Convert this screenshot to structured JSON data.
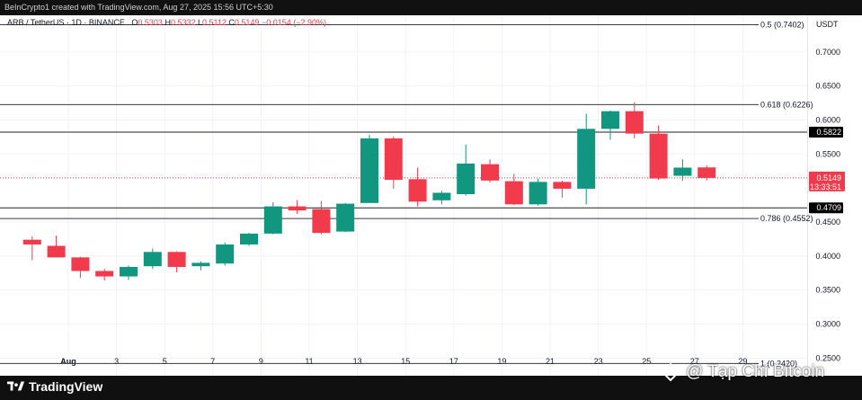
{
  "header": {
    "credit": "BeInCrypto1 created with TradingView.com, Aug 27, 2025 15:56 UTC+5:30"
  },
  "legend": {
    "symbol": "ARB / TetherUS · 1D · BINANCE",
    "o_label": "O",
    "o_value": "0.5303",
    "h_label": "H",
    "h_value": "0.5332",
    "l_label": "L",
    "l_value": "0.5112",
    "c_label": "C",
    "c_value": "0.5149",
    "change": "−0.0154 (−2.90%)"
  },
  "axis": {
    "currency": "USDT"
  },
  "colors": {
    "up": "#11967f",
    "down": "#f23a4d",
    "fib_line": "#3a3a3a",
    "grid": "#f0f3fa"
  },
  "watermark": {
    "text": "@ Tạp Chí Bitcoin"
  },
  "footer": {
    "brand": "TradingView"
  },
  "chart_data": {
    "type": "candlestick",
    "ylim": [
      0.224,
      0.754
    ],
    "y_ticks": [
      "0.7000",
      "0.6500",
      "0.6000",
      "0.5500",
      "0.4500",
      "0.4000",
      "0.3500",
      "0.3000",
      "0.2500"
    ],
    "x_ticks": [
      {
        "label": "Aug",
        "day": 1
      },
      {
        "label": "3",
        "day": 3
      },
      {
        "label": "5",
        "day": 5
      },
      {
        "label": "7",
        "day": 7
      },
      {
        "label": "9",
        "day": 9
      },
      {
        "label": "11",
        "day": 11
      },
      {
        "label": "13",
        "day": 13
      },
      {
        "label": "15",
        "day": 15
      },
      {
        "label": "17",
        "day": 17
      },
      {
        "label": "19",
        "day": 19
      },
      {
        "label": "21",
        "day": 21
      },
      {
        "label": "23",
        "day": 23
      },
      {
        "label": "25",
        "day": 25
      },
      {
        "label": "27",
        "day": 27
      },
      {
        "label": "29",
        "day": 29
      }
    ],
    "candles": [
      {
        "day": -0.5,
        "o": 0.424,
        "h": 0.429,
        "l": 0.394,
        "c": 0.417
      },
      {
        "day": 0.5,
        "o": 0.415,
        "h": 0.43,
        "l": 0.399,
        "c": 0.398
      },
      {
        "day": 1.5,
        "o": 0.398,
        "h": 0.399,
        "l": 0.368,
        "c": 0.378
      },
      {
        "day": 2.5,
        "o": 0.378,
        "h": 0.381,
        "l": 0.364,
        "c": 0.37
      },
      {
        "day": 3.5,
        "o": 0.37,
        "h": 0.386,
        "l": 0.365,
        "c": 0.384
      },
      {
        "day": 4.5,
        "o": 0.385,
        "h": 0.411,
        "l": 0.381,
        "c": 0.406
      },
      {
        "day": 5.5,
        "o": 0.406,
        "h": 0.407,
        "l": 0.376,
        "c": 0.384
      },
      {
        "day": 6.5,
        "o": 0.385,
        "h": 0.392,
        "l": 0.379,
        "c": 0.39
      },
      {
        "day": 7.5,
        "o": 0.389,
        "h": 0.42,
        "l": 0.386,
        "c": 0.417
      },
      {
        "day": 8.5,
        "o": 0.417,
        "h": 0.434,
        "l": 0.415,
        "c": 0.433
      },
      {
        "day": 9.5,
        "o": 0.433,
        "h": 0.479,
        "l": 0.432,
        "c": 0.473
      },
      {
        "day": 10.5,
        "o": 0.473,
        "h": 0.482,
        "l": 0.462,
        "c": 0.467
      },
      {
        "day": 11.5,
        "o": 0.469,
        "h": 0.481,
        "l": 0.432,
        "c": 0.434
      },
      {
        "day": 12.5,
        "o": 0.436,
        "h": 0.478,
        "l": 0.435,
        "c": 0.477
      },
      {
        "day": 13.5,
        "o": 0.478,
        "h": 0.578,
        "l": 0.478,
        "c": 0.573
      },
      {
        "day": 14.5,
        "o": 0.573,
        "h": 0.576,
        "l": 0.499,
        "c": 0.512
      },
      {
        "day": 15.5,
        "o": 0.513,
        "h": 0.53,
        "l": 0.473,
        "c": 0.48
      },
      {
        "day": 16.5,
        "o": 0.482,
        "h": 0.496,
        "l": 0.476,
        "c": 0.493
      },
      {
        "day": 17.5,
        "o": 0.491,
        "h": 0.564,
        "l": 0.489,
        "c": 0.536
      },
      {
        "day": 18.5,
        "o": 0.535,
        "h": 0.542,
        "l": 0.508,
        "c": 0.511
      },
      {
        "day": 19.5,
        "o": 0.51,
        "h": 0.521,
        "l": 0.475,
        "c": 0.476
      },
      {
        "day": 20.5,
        "o": 0.476,
        "h": 0.514,
        "l": 0.474,
        "c": 0.509
      },
      {
        "day": 21.5,
        "o": 0.509,
        "h": 0.511,
        "l": 0.486,
        "c": 0.499
      },
      {
        "day": 22.5,
        "o": 0.499,
        "h": 0.609,
        "l": 0.476,
        "c": 0.587
      },
      {
        "day": 23.5,
        "o": 0.587,
        "h": 0.614,
        "l": 0.571,
        "c": 0.613
      },
      {
        "day": 24.5,
        "o": 0.613,
        "h": 0.626,
        "l": 0.573,
        "c": 0.58
      },
      {
        "day": 25.5,
        "o": 0.58,
        "h": 0.592,
        "l": 0.512,
        "c": 0.514
      },
      {
        "day": 26.5,
        "o": 0.518,
        "h": 0.542,
        "l": 0.511,
        "c": 0.53
      },
      {
        "day": 27.5,
        "o": 0.5303,
        "h": 0.5332,
        "l": 0.5112,
        "c": 0.5149
      }
    ],
    "horizontal_levels": [
      {
        "label": "0.5 (0.7402)",
        "value": 0.7402,
        "style": "fib"
      },
      {
        "label": "0.618 (0.6226)",
        "value": 0.6226,
        "style": "fib"
      },
      {
        "label": "0.786 (0.4552)",
        "value": 0.4552,
        "style": "fib"
      },
      {
        "label": "1 (0.2420)",
        "value": 0.242,
        "style": "fib"
      },
      {
        "value": 0.5822,
        "style": "level",
        "tag": "0.5822"
      },
      {
        "value": 0.4709,
        "style": "level",
        "tag": "0.4709"
      }
    ],
    "current_price": {
      "value": 0.5149,
      "tag": "0.5149",
      "countdown": "13:33:51"
    }
  }
}
